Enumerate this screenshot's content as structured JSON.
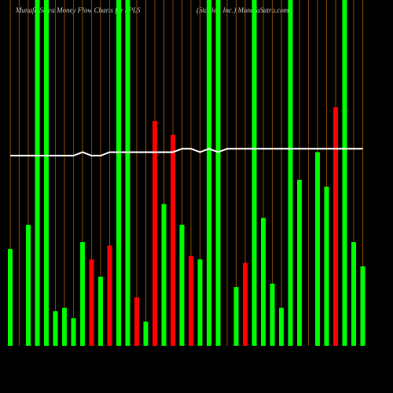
{
  "chart_data": {
    "type": "bar",
    "title": "Munafa Sutra  Money Flow  Charts for SPLS",
    "subtitle": "(Staples, Inc.) MunafaSutra.com",
    "categories": [
      null,
      null,
      null,
      null,
      null,
      null,
      null,
      null,
      null,
      null,
      null,
      null,
      null,
      null,
      null,
      null,
      null,
      null,
      null,
      null,
      null,
      null,
      null,
      null,
      null,
      null,
      null,
      null,
      null,
      null,
      null,
      null,
      null,
      null,
      null,
      null,
      null,
      null,
      null,
      null
    ],
    "values": [
      28,
      0,
      35,
      100,
      100,
      10,
      11,
      8,
      30,
      25,
      20,
      29,
      100,
      100,
      14,
      7,
      65,
      41,
      61,
      35,
      26,
      25,
      100,
      100,
      0,
      17,
      24,
      100,
      37,
      18,
      11,
      100,
      48,
      0,
      56,
      46,
      69,
      100,
      30,
      23
    ],
    "colors": [
      "#00ff00",
      "#00ff00",
      "#00ff00",
      "#00ff00",
      "#00ff00",
      "#00ff00",
      "#00ff00",
      "#00ff00",
      "#00ff00",
      "#ff0000",
      "#00ff00",
      "#ff0000",
      "#00ff00",
      "#00ff00",
      "#ff0000",
      "#00ff00",
      "#ff0000",
      "#00ff00",
      "#ff0000",
      "#00ff00",
      "#ff0000",
      "#00ff00",
      "#00ff00",
      "#00ff00",
      "#00ff00",
      "#00ff00",
      "#ff0000",
      "#00ff00",
      "#00ff00",
      "#00ff00",
      "#00ff00",
      "#00ff00",
      "#00ff00",
      "#00ff00",
      "#00ff00",
      "#00ff00",
      "#ff0000",
      "#00ff00",
      "#00ff00",
      "#00ff00"
    ],
    "line": {
      "color": "#ffffff",
      "values": [
        55,
        55,
        55,
        55,
        55,
        55,
        55,
        55,
        56,
        55,
        55,
        56,
        56,
        56,
        56,
        56,
        56,
        56,
        56,
        57,
        57,
        56,
        57,
        56,
        57,
        57,
        57,
        57,
        57,
        57,
        57,
        57,
        57,
        57,
        57,
        57,
        57,
        57,
        57,
        57
      ]
    },
    "ylim": [
      0,
      100
    ]
  }
}
